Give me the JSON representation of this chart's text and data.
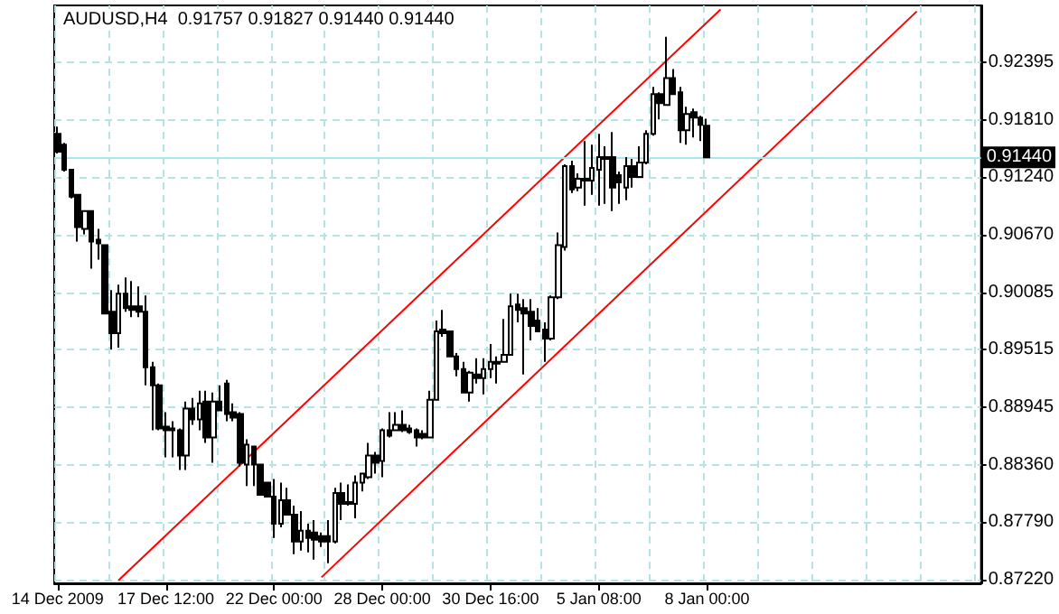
{
  "chart_data": {
    "type": "candlestick",
    "title": "AUDUSD,H4  0.91757 0.91827 0.91440 0.91440",
    "color": "#000000",
    "categories": [
      "14 Dec 2009",
      null,
      null,
      null,
      null,
      null,
      null,
      null,
      null,
      null,
      null,
      null,
      null,
      null,
      null,
      null,
      "17 Dec 12:00",
      null,
      null,
      null,
      null,
      null,
      null,
      null,
      null,
      null,
      null,
      null,
      null,
      null,
      null,
      null,
      "22 Dec 00:00",
      null,
      null,
      null,
      null,
      null,
      null,
      null,
      null,
      null,
      null,
      null,
      null,
      null,
      null,
      null,
      "28 Dec 00:00",
      null,
      null,
      null,
      null,
      null,
      null,
      null,
      null,
      null,
      null,
      null,
      null,
      null,
      null,
      null,
      "30 Dec 16:00",
      null,
      null,
      null,
      null,
      null,
      null,
      null,
      null,
      null,
      null,
      null,
      null,
      null,
      null,
      null,
      "5 Jan 08:00",
      null,
      null,
      null,
      null,
      null,
      null,
      null,
      null,
      null,
      null,
      null,
      null,
      null,
      null,
      null,
      "8 Jan 00:00",
      null,
      null,
      null,
      null,
      null,
      null,
      null,
      null,
      null,
      null,
      null,
      null,
      null,
      null,
      null,
      null,
      null,
      null,
      null,
      null,
      null,
      null,
      null,
      null,
      null,
      null,
      null,
      null,
      null,
      null,
      null,
      null,
      null,
      null,
      null,
      null,
      null,
      null,
      null,
      null
    ],
    "ohlc": [
      [
        0.91676,
        0.91748,
        0.91479,
        0.91497
      ],
      [
        0.91568,
        0.91586,
        0.91299,
        0.91317
      ],
      [
        0.91317,
        0.91317,
        0.91029,
        0.91047
      ],
      [
        0.91065,
        0.91065,
        0.90598,
        0.90742
      ],
      [
        0.90724,
        0.90903,
        0.9067,
        0.90903
      ],
      [
        0.90903,
        0.90903,
        0.90328,
        0.90598
      ],
      [
        0.90616,
        0.90724,
        0.90418,
        0.9058
      ],
      [
        0.90562,
        0.90562,
        0.89879,
        0.89879
      ],
      [
        0.89897,
        0.90113,
        0.8952,
        0.89681
      ],
      [
        0.89681,
        0.90167,
        0.89538,
        0.90077
      ],
      [
        0.90077,
        0.90239,
        0.89897,
        0.89933
      ],
      [
        0.89951,
        0.90203,
        0.89843,
        0.89915
      ],
      [
        0.89951,
        0.90149,
        0.89843,
        0.89897
      ],
      [
        0.89897,
        0.90059,
        0.8916,
        0.8934
      ],
      [
        0.8934,
        0.89394,
        0.88711,
        0.8916
      ],
      [
        0.8916,
        0.89178,
        0.88711,
        0.88729
      ],
      [
        0.88747,
        0.88891,
        0.8844,
        0.88711
      ],
      [
        0.88729,
        0.88801,
        0.8844,
        0.88711
      ],
      [
        0.88711,
        0.88729,
        0.88314,
        0.88458
      ],
      [
        0.88458,
        0.88998,
        0.88314,
        0.88927
      ],
      [
        0.88927,
        0.89034,
        0.88765,
        0.88819
      ],
      [
        0.88819,
        0.89106,
        0.88711,
        0.8898
      ],
      [
        0.88998,
        0.89106,
        0.88585,
        0.88639
      ],
      [
        0.88639,
        0.89088,
        0.88386,
        0.88998
      ],
      [
        0.88998,
        0.8916,
        0.88909,
        0.88909
      ],
      [
        0.89178,
        0.89214,
        0.88801,
        0.88873
      ],
      [
        0.88891,
        0.8898,
        0.88801,
        0.88837
      ],
      [
        0.88873,
        0.88891,
        0.8835,
        0.88386
      ],
      [
        0.88368,
        0.88621,
        0.88152,
        0.88567
      ],
      [
        0.88549,
        0.88549,
        0.88152,
        0.88368
      ],
      [
        0.88368,
        0.88368,
        0.88064,
        0.88064
      ],
      [
        0.88188,
        0.88188,
        0.88046,
        0.88046
      ],
      [
        0.88046,
        0.88224,
        0.87633,
        0.87776
      ],
      [
        0.87776,
        0.88188,
        0.87741,
        0.8801
      ],
      [
        0.8801,
        0.88136,
        0.87866,
        0.87866
      ],
      [
        0.87866,
        0.87956,
        0.87471,
        0.87597
      ],
      [
        0.87597,
        0.87902,
        0.87507,
        0.87705
      ],
      [
        0.87705,
        0.87776,
        0.87489,
        0.87633
      ],
      [
        0.87687,
        0.87812,
        0.87417,
        0.87615
      ],
      [
        0.87651,
        0.87687,
        0.87543,
        0.87597
      ],
      [
        0.87651,
        0.87812,
        0.87381,
        0.87597
      ],
      [
        0.87597,
        0.88136,
        0.87579,
        0.88082
      ],
      [
        0.88082,
        0.88188,
        0.87812,
        0.87974
      ],
      [
        0.87992,
        0.8817,
        0.87956,
        0.87974
      ],
      [
        0.87974,
        0.8826,
        0.8783,
        0.88188
      ],
      [
        0.88188,
        0.88278,
        0.881,
        0.88278
      ],
      [
        0.88242,
        0.88585,
        0.88224,
        0.88458
      ],
      [
        0.88458,
        0.88495,
        0.88278,
        0.88386
      ],
      [
        0.88404,
        0.88729,
        0.88242,
        0.88711
      ],
      [
        0.88711,
        0.88891,
        0.88639,
        0.88657
      ],
      [
        0.88711,
        0.88891,
        0.88711,
        0.88765
      ],
      [
        0.88765,
        0.88909,
        0.88693,
        0.88711
      ],
      [
        0.88729,
        0.88765,
        0.88675,
        0.88693
      ],
      [
        0.88711,
        0.88729,
        0.88549,
        0.88639
      ],
      [
        0.88675,
        0.88711,
        0.88621,
        0.88639
      ],
      [
        0.88639,
        0.89106,
        0.88639,
        0.89016
      ],
      [
        0.89016,
        0.89807,
        0.89016,
        0.89699
      ],
      [
        0.89717,
        0.89915,
        0.89646,
        0.89681
      ],
      [
        0.89699,
        0.89699,
        0.89448,
        0.89448
      ],
      [
        0.89448,
        0.89484,
        0.8925,
        0.89322
      ],
      [
        0.89322,
        0.89394,
        0.89088,
        0.89088
      ],
      [
        0.89088,
        0.89304,
        0.88998,
        0.89286
      ],
      [
        0.89268,
        0.8943,
        0.89178,
        0.89232
      ],
      [
        0.89232,
        0.8943,
        0.8907,
        0.89322
      ],
      [
        0.89322,
        0.89574,
        0.89232,
        0.89394
      ],
      [
        0.89394,
        0.89448,
        0.89178,
        0.89376
      ],
      [
        0.89394,
        0.89825,
        0.89394,
        0.89466
      ],
      [
        0.89466,
        0.90077,
        0.89466,
        0.89951
      ],
      [
        0.89969,
        0.90077,
        0.89789,
        0.89915
      ],
      [
        0.89933,
        0.90023,
        0.89268,
        0.89879
      ],
      [
        0.89897,
        0.90023,
        0.8961,
        0.89753
      ],
      [
        0.89807,
        0.89933,
        0.89699,
        0.89699
      ],
      [
        0.89717,
        0.89789,
        0.89394,
        0.89628
      ],
      [
        0.89628,
        0.90059,
        0.8961,
        0.90041
      ],
      [
        0.90041,
        0.90688,
        0.90023,
        0.90562
      ],
      [
        0.90544,
        0.91371,
        0.90508,
        0.91353
      ],
      [
        0.91353,
        0.91407,
        0.91083,
        0.91119
      ],
      [
        0.91137,
        0.91281,
        0.91101,
        0.91227
      ],
      [
        0.91209,
        0.91604,
        0.90957,
        0.91227
      ],
      [
        0.91209,
        0.91568,
        0.91065,
        0.91335
      ],
      [
        0.91317,
        0.91676,
        0.90957,
        0.91443
      ],
      [
        0.91443,
        0.9155,
        0.90975,
        0.91425
      ],
      [
        0.91443,
        0.91694,
        0.90903,
        0.91137
      ],
      [
        0.91263,
        0.91299,
        0.90975,
        0.91191
      ],
      [
        0.91137,
        0.91443,
        0.91011,
        0.91353
      ],
      [
        0.91353,
        0.91425,
        0.91137,
        0.91245
      ],
      [
        0.91245,
        0.9155,
        0.91245,
        0.91389
      ],
      [
        0.91389,
        0.91712,
        0.91371,
        0.91676
      ],
      [
        0.91676,
        0.92144,
        0.91658,
        0.92072
      ],
      [
        0.92072,
        0.9209,
        0.9182,
        0.91982
      ],
      [
        0.91964,
        0.92647,
        0.91964,
        0.92233
      ],
      [
        0.92233,
        0.92323,
        0.92072,
        0.92072
      ],
      [
        0.9209,
        0.92144,
        0.91586,
        0.91712
      ],
      [
        0.91712,
        0.91946,
        0.91568,
        0.91874
      ],
      [
        0.91892,
        0.91928,
        0.9164,
        0.91838
      ],
      [
        0.91838,
        0.91856,
        0.91604,
        0.91766
      ],
      [
        0.91757,
        0.91827,
        0.9144,
        0.9144
      ],
      null,
      null,
      null,
      null,
      null,
      null,
      null,
      null,
      null,
      null,
      null,
      null,
      null,
      null,
      null,
      null,
      null,
      null,
      null,
      null,
      null,
      null,
      null,
      null,
      null,
      null,
      null,
      null,
      null,
      null,
      null,
      null,
      null,
      null,
      null,
      null,
      null,
      null,
      null,
      null
    ],
    "series": [
      {
        "type": "line",
        "color": "#ff0000",
        "values": [
          null,
          null,
          null,
          null,
          null,
          null,
          null,
          null,
          null,
          0.8721,
          null,
          null,
          null,
          null,
          null,
          null,
          null,
          null,
          null,
          null,
          null,
          null,
          null,
          null,
          null,
          null,
          null,
          null,
          null,
          null,
          null,
          null,
          null,
          null,
          null,
          null,
          null,
          null,
          null,
          null,
          null,
          null,
          null,
          null,
          null,
          null,
          null,
          null,
          null,
          null,
          null,
          null,
          null,
          null,
          null,
          null,
          null,
          null,
          null,
          null,
          null,
          null,
          null,
          null,
          null,
          null,
          null,
          null,
          null,
          null,
          null,
          null,
          null,
          null,
          null,
          null,
          null,
          null,
          null,
          null,
          null,
          null,
          null,
          null,
          null,
          null,
          null,
          null,
          null,
          null,
          null,
          null,
          null,
          null,
          null,
          null,
          null,
          null,
          0.9292,
          null,
          null,
          null,
          null,
          null,
          null,
          null,
          null,
          null,
          null,
          null,
          null,
          null,
          null,
          null,
          null,
          null,
          null,
          null,
          null,
          null,
          null,
          null,
          null,
          null,
          null,
          null,
          null,
          null,
          null,
          null,
          null,
          null,
          null,
          null,
          null,
          null,
          null
        ]
      },
      {
        "type": "line",
        "color": "#ff0000",
        "values": [
          null,
          null,
          null,
          null,
          null,
          null,
          null,
          null,
          null,
          null,
          null,
          null,
          null,
          null,
          null,
          null,
          null,
          null,
          null,
          null,
          null,
          null,
          null,
          null,
          null,
          null,
          null,
          null,
          null,
          null,
          null,
          null,
          null,
          null,
          null,
          null,
          null,
          null,
          null,
          0.8724,
          null,
          null,
          null,
          null,
          null,
          null,
          null,
          null,
          null,
          null,
          null,
          null,
          null,
          null,
          null,
          null,
          null,
          null,
          null,
          null,
          null,
          null,
          null,
          null,
          null,
          null,
          null,
          null,
          null,
          null,
          null,
          null,
          null,
          null,
          null,
          null,
          null,
          null,
          null,
          null,
          null,
          null,
          null,
          null,
          null,
          null,
          null,
          null,
          null,
          null,
          null,
          null,
          null,
          null,
          null,
          null,
          null,
          null,
          null,
          null,
          null,
          null,
          null,
          null,
          null,
          null,
          null,
          null,
          null,
          null,
          null,
          null,
          null,
          null,
          null,
          null,
          null,
          null,
          null,
          null,
          null,
          null,
          null,
          null,
          null,
          null,
          null,
          0.929,
          null,
          null,
          null,
          null,
          null,
          null,
          null,
          null,
          null
        ]
      }
    ],
    "ylim": [
      0.8718,
      0.9296
    ],
    "yticks": [
      {
        "value": 0.8722,
        "label": "0.87220"
      },
      {
        "value": 0.8779,
        "label": "0.87790"
      },
      {
        "value": 0.8836,
        "label": "0.88360"
      },
      {
        "value": 0.88945,
        "label": "0.88945"
      },
      {
        "value": 0.89515,
        "label": "0.89515"
      },
      {
        "value": 0.90085,
        "label": "0.90085"
      },
      {
        "value": 0.9067,
        "label": "0.90670"
      },
      {
        "value": 0.9124,
        "label": "0.91240"
      },
      {
        "value": 0.9181,
        "label": "0.91810"
      },
      {
        "value": 0.92395,
        "label": "0.92395"
      }
    ],
    "ref_lines": [
      {
        "axis": "y",
        "value": 0.9144,
        "label": "0.91440",
        "color": "#a8e8e8"
      }
    ],
    "grid": true
  }
}
